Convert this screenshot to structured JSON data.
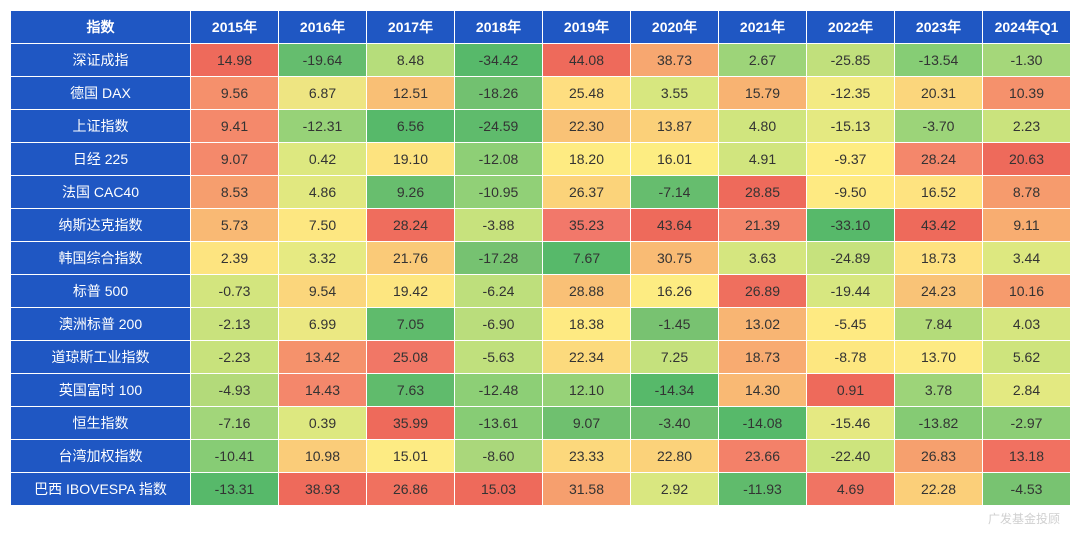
{
  "table": {
    "type": "heatmap",
    "header_bg": "#1f57c3",
    "header_color": "#ffffff",
    "border_color": "#ffffff",
    "cell_text_color": "#333333",
    "font_size": 14,
    "first_col_width": 180,
    "year_col_width": 88,
    "color_scale": {
      "min_color": "#57b96a",
      "mid_color": "#feea83",
      "max_color": "#ee6a5b"
    },
    "columns": [
      "指数",
      "2015年",
      "2016年",
      "2017年",
      "2018年",
      "2019年",
      "2020年",
      "2021年",
      "2022年",
      "2023年",
      "2024年Q1"
    ],
    "rows": [
      {
        "name": "深证成指",
        "values": [
          14.98,
          -19.64,
          8.48,
          -34.42,
          44.08,
          38.73,
          2.67,
          -25.85,
          -13.54,
          -1.3
        ],
        "colors": [
          "#ee6a5b",
          "#65bd6e",
          "#b6dd7b",
          "#57b96a",
          "#ee6a5b",
          "#f7a770",
          "#9dd479",
          "#c1e07c",
          "#86cd75",
          "#a5d77a"
        ]
      },
      {
        "name": "德国 DAX",
        "values": [
          9.56,
          6.87,
          12.51,
          -18.26,
          25.48,
          3.55,
          15.79,
          -12.35,
          20.31,
          10.39
        ],
        "colors": [
          "#f5906c",
          "#eee582",
          "#f9bf75",
          "#72c170",
          "#fede80",
          "#d7e77f",
          "#f8b372",
          "#f3ea83",
          "#fbd67c",
          "#f5916c"
        ]
      },
      {
        "name": "上证指数",
        "values": [
          9.41,
          -12.31,
          6.56,
          -24.59,
          22.3,
          13.87,
          4.8,
          -15.13,
          -3.7,
          2.23
        ],
        "colors": [
          "#f4896b",
          "#97d278",
          "#57b96a",
          "#5fbb6c",
          "#f9c276",
          "#fbd079",
          "#d0e57e",
          "#e4e981",
          "#9cd479",
          "#cae37d"
        ]
      },
      {
        "name": "日经 225",
        "values": [
          9.07,
          0.42,
          19.1,
          -12.08,
          18.2,
          16.01,
          4.91,
          -9.37,
          28.24,
          20.63
        ],
        "colors": [
          "#f4896b",
          "#dde880",
          "#fde37f",
          "#8ecf76",
          "#feeb82",
          "#fded82",
          "#d1e57e",
          "#feec82",
          "#f4876b",
          "#ee6a5b"
        ]
      },
      {
        "name": "法国 CAC40",
        "values": [
          8.53,
          4.86,
          9.26,
          -10.95,
          26.37,
          -7.14,
          28.85,
          -9.5,
          16.52,
          8.78
        ],
        "colors": [
          "#f69e6e",
          "#e1e880",
          "#68be6e",
          "#91d077",
          "#fbd37a",
          "#66bd6e",
          "#ee6a5b",
          "#feea82",
          "#fee380",
          "#f69b6d"
        ]
      },
      {
        "name": "纳斯达克指数",
        "values": [
          5.73,
          7.5,
          28.24,
          -3.88,
          35.23,
          43.64,
          21.39,
          -33.1,
          43.42,
          9.11
        ],
        "colors": [
          "#f9b974",
          "#fde781",
          "#ef6d5d",
          "#c7e27d",
          "#f2786a",
          "#ee6a5b",
          "#f4866b",
          "#57b96a",
          "#ee6a5b",
          "#f8ad71"
        ]
      },
      {
        "name": "韩国综合指数",
        "values": [
          2.39,
          3.32,
          21.76,
          -17.28,
          7.67,
          30.75,
          3.63,
          -24.89,
          18.73,
          3.44
        ],
        "colors": [
          "#fde480",
          "#e6ea82",
          "#faca78",
          "#76c271",
          "#57b96a",
          "#f9bb74",
          "#d5e67f",
          "#c6e27d",
          "#fee180",
          "#dde880"
        ]
      },
      {
        "name": "标普 500",
        "values": [
          -0.73,
          9.54,
          19.42,
          -6.24,
          28.88,
          16.26,
          26.89,
          -19.44,
          24.23,
          10.16
        ],
        "colors": [
          "#d3e57e",
          "#fbd67c",
          "#fde680",
          "#bedf7c",
          "#f9c076",
          "#fdec82",
          "#ef6f5e",
          "#d7e780",
          "#f9c377",
          "#f69b6d"
        ]
      },
      {
        "name": "澳洲标普 200",
        "values": [
          -2.13,
          6.99,
          7.05,
          -6.9,
          18.38,
          -1.45,
          13.02,
          -5.45,
          7.84,
          4.03
        ],
        "colors": [
          "#c9e27d",
          "#ebe882",
          "#5fbb6c",
          "#badd7c",
          "#feea82",
          "#78c271",
          "#f8b573",
          "#feea82",
          "#b4dc7a",
          "#d6e67f"
        ]
      },
      {
        "name": "道琼斯工业指数",
        "values": [
          -2.23,
          13.42,
          25.08,
          -5.63,
          22.34,
          7.25,
          18.73,
          -8.78,
          13.7,
          5.62
        ],
        "colors": [
          "#c8e27c",
          "#f5926c",
          "#f17766",
          "#c0e07d",
          "#fcda7d",
          "#c5e17d",
          "#f8ab71",
          "#fde780",
          "#fdea83",
          "#cee47d"
        ]
      },
      {
        "name": "英国富时 100",
        "values": [
          -4.93,
          14.43,
          7.63,
          -12.48,
          12.1,
          -14.34,
          14.3,
          0.91,
          3.78,
          2.84
        ],
        "colors": [
          "#b3da7a",
          "#f4876b",
          "#60bb6c",
          "#8dcf76",
          "#97d278",
          "#57b96a",
          "#f9b974",
          "#ee6a5b",
          "#9dd479",
          "#e3e981"
        ]
      },
      {
        "name": "恒生指数",
        "values": [
          -7.16,
          0.39,
          35.99,
          -13.61,
          9.07,
          -3.4,
          -14.08,
          -15.46,
          -13.82,
          -2.97
        ],
        "colors": [
          "#a2d67a",
          "#dde880",
          "#ee6a5b",
          "#87cc75",
          "#6fc06f",
          "#6ec06f",
          "#57b96a",
          "#e5e982",
          "#85cb74",
          "#8dce76"
        ]
      },
      {
        "name": "台湾加权指数",
        "values": [
          -10.41,
          10.98,
          15.01,
          -8.6,
          23.33,
          22.8,
          23.66,
          -22.4,
          26.83,
          13.18
        ],
        "colors": [
          "#87cc75",
          "#facc79",
          "#fdeb83",
          "#aad77b",
          "#fcd87c",
          "#fbd27a",
          "#f38169",
          "#cde47d",
          "#f6a06e",
          "#f17161"
        ]
      },
      {
        "name": "巴西 IBOVESPA 指数",
        "values": [
          -13.31,
          38.93,
          26.86,
          15.03,
          31.58,
          2.92,
          -11.93,
          4.69,
          22.28,
          -4.53
        ],
        "colors": [
          "#57b96a",
          "#ee6a5b",
          "#f0715f",
          "#ee6a5b",
          "#f69f6e",
          "#d9e780",
          "#60bb6c",
          "#f07463",
          "#fbcf79",
          "#78c371"
        ]
      }
    ]
  },
  "watermark": "广发基金投顾"
}
